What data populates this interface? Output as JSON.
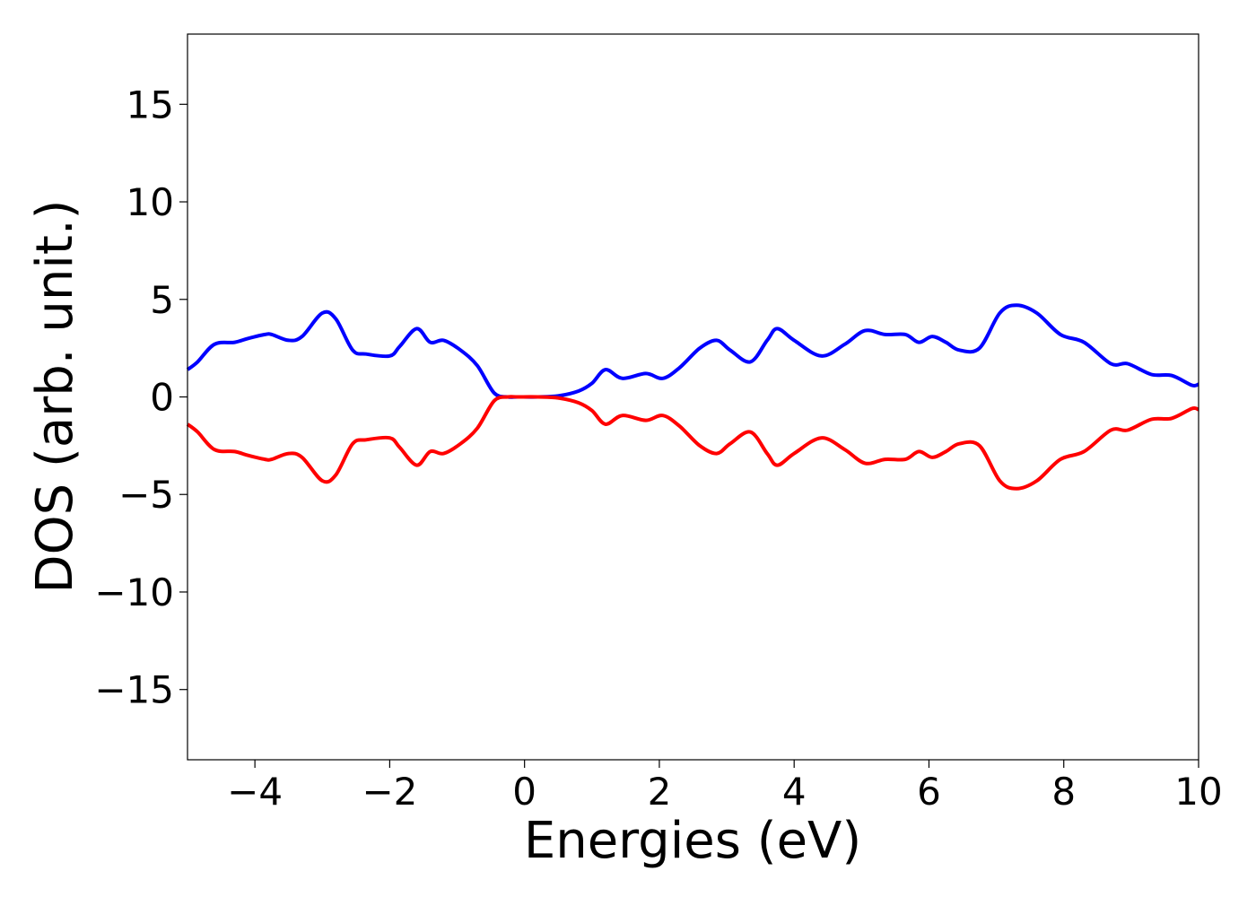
{
  "chart_data": {
    "type": "line",
    "xlabel": "Energies (eV)",
    "ylabel": "DOS (arb. unit.)",
    "xlim": [
      -5,
      10
    ],
    "ylim": [
      -18.6,
      18.6
    ],
    "xticks": [
      -4,
      -2,
      0,
      2,
      4,
      6,
      8,
      10
    ],
    "yticks": [
      -15,
      -10,
      -5,
      0,
      5,
      10,
      15
    ],
    "grid": false,
    "legend": "none",
    "series": [
      {
        "color": "#0000ff",
        "x": [
          -5.0,
          -4.85,
          -4.6,
          -4.3,
          -4.1,
          -3.85,
          -3.75,
          -3.5,
          -3.3,
          -3.0,
          -2.8,
          -2.55,
          -2.35,
          -2.0,
          -1.85,
          -1.6,
          -1.4,
          -1.2,
          -0.95,
          -0.7,
          -0.45,
          -0.25,
          -0.1,
          0.2,
          0.5,
          0.8,
          1.0,
          1.2,
          1.45,
          1.8,
          2.05,
          2.3,
          2.6,
          2.85,
          3.05,
          3.35,
          3.6,
          3.75,
          4.0,
          4.4,
          4.75,
          5.05,
          5.35,
          5.65,
          5.85,
          6.05,
          6.25,
          6.45,
          6.75,
          7.05,
          7.3,
          7.6,
          7.95,
          8.3,
          8.7,
          8.95,
          9.3,
          9.6,
          9.9,
          10.0
        ],
        "y": [
          1.4,
          1.8,
          2.7,
          2.8,
          3.0,
          3.2,
          3.2,
          2.9,
          3.1,
          4.3,
          4.0,
          2.4,
          2.2,
          2.1,
          2.6,
          3.5,
          2.8,
          2.9,
          2.4,
          1.6,
          0.2,
          0.0,
          0.0,
          0.0,
          0.05,
          0.3,
          0.7,
          1.4,
          0.95,
          1.2,
          0.95,
          1.5,
          2.5,
          2.9,
          2.4,
          1.8,
          2.9,
          3.5,
          2.9,
          2.1,
          2.7,
          3.4,
          3.2,
          3.2,
          2.8,
          3.1,
          2.8,
          2.4,
          2.5,
          4.3,
          4.7,
          4.3,
          3.2,
          2.8,
          1.7,
          1.7,
          1.15,
          1.1,
          0.6,
          0.65
        ]
      },
      {
        "color": "#ff0000",
        "x": [
          -5.0,
          -4.85,
          -4.6,
          -4.3,
          -4.1,
          -3.85,
          -3.75,
          -3.5,
          -3.3,
          -3.0,
          -2.8,
          -2.55,
          -2.35,
          -2.0,
          -1.85,
          -1.6,
          -1.4,
          -1.2,
          -0.95,
          -0.7,
          -0.45,
          -0.25,
          -0.1,
          0.2,
          0.5,
          0.8,
          1.0,
          1.2,
          1.45,
          1.8,
          2.05,
          2.3,
          2.6,
          2.85,
          3.05,
          3.35,
          3.6,
          3.75,
          4.0,
          4.4,
          4.75,
          5.05,
          5.35,
          5.65,
          5.85,
          6.05,
          6.25,
          6.45,
          6.75,
          7.05,
          7.3,
          7.6,
          7.95,
          8.3,
          8.7,
          8.95,
          9.3,
          9.6,
          9.9,
          10.0
        ],
        "y": [
          -1.4,
          -1.8,
          -2.7,
          -2.8,
          -3.0,
          -3.2,
          -3.2,
          -2.9,
          -3.1,
          -4.3,
          -4.0,
          -2.4,
          -2.2,
          -2.1,
          -2.6,
          -3.5,
          -2.8,
          -2.9,
          -2.4,
          -1.6,
          -0.2,
          0.0,
          0.0,
          0.0,
          -0.05,
          -0.3,
          -0.7,
          -1.4,
          -0.95,
          -1.2,
          -0.95,
          -1.5,
          -2.5,
          -2.9,
          -2.4,
          -1.8,
          -2.9,
          -3.5,
          -2.9,
          -2.1,
          -2.7,
          -3.4,
          -3.2,
          -3.2,
          -2.8,
          -3.1,
          -2.8,
          -2.4,
          -2.5,
          -4.3,
          -4.7,
          -4.3,
          -3.2,
          -2.8,
          -1.7,
          -1.7,
          -1.15,
          -1.1,
          -0.6,
          -0.65
        ]
      }
    ]
  }
}
